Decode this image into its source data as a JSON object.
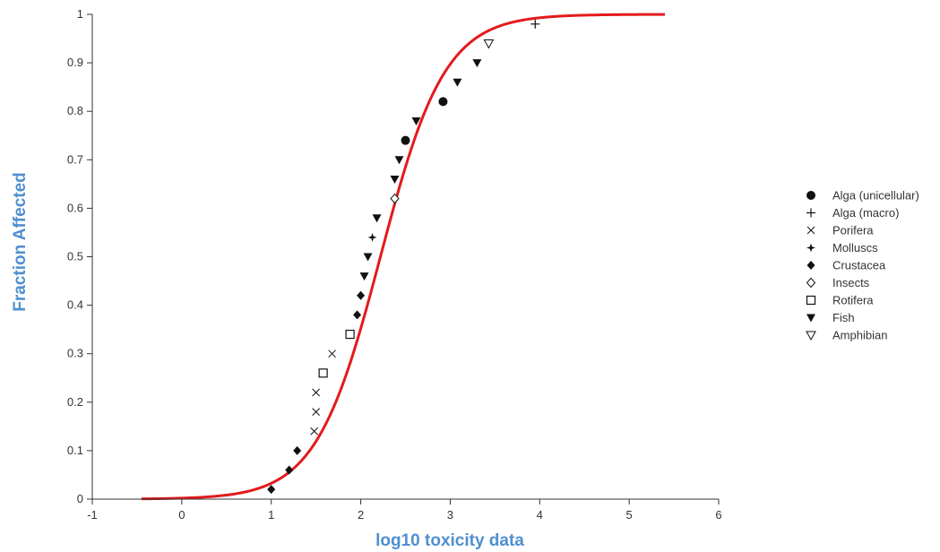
{
  "colors": {
    "axis_title": "#4f8fcf",
    "fit_line": "#e31a1c",
    "marker": "#111111",
    "axis": "#333333"
  },
  "chart_data": {
    "type": "scatter",
    "title": "",
    "xlabel": "log10 toxicity data",
    "ylabel": "Fraction Affected",
    "xlim": [
      -1,
      6
    ],
    "ylim": [
      0,
      1
    ],
    "xticks": [
      -1,
      0,
      1,
      2,
      3,
      4,
      5,
      6
    ],
    "yticks": [
      0,
      0.1,
      0.2,
      0.3,
      0.4,
      0.5,
      0.6,
      0.7,
      0.8,
      0.9,
      1
    ],
    "grid": false,
    "legend_position": "right",
    "fit_curve": {
      "type": "log-logistic",
      "x_range": [
        -0.45,
        5.4
      ],
      "midpoint": 2.22,
      "scale": 0.36
    },
    "series": [
      {
        "name": "Alga (unicellular)",
        "marker": "filled-circle",
        "points": [
          [
            2.5,
            0.74
          ],
          [
            2.92,
            0.82
          ]
        ]
      },
      {
        "name": "Alga (macro)",
        "marker": "plus",
        "points": [
          [
            3.95,
            0.98
          ]
        ]
      },
      {
        "name": "Porifera",
        "marker": "x",
        "points": [
          [
            1.48,
            0.14
          ],
          [
            1.5,
            0.18
          ],
          [
            1.5,
            0.22
          ],
          [
            1.68,
            0.3
          ]
        ]
      },
      {
        "name": "Molluscs",
        "marker": "small-star",
        "points": [
          [
            2.13,
            0.54
          ]
        ]
      },
      {
        "name": "Crustacea",
        "marker": "filled-diamond",
        "points": [
          [
            1.0,
            0.02
          ],
          [
            1.2,
            0.06
          ],
          [
            1.29,
            0.1
          ],
          [
            1.96,
            0.38
          ],
          [
            2.0,
            0.42
          ]
        ]
      },
      {
        "name": "Insects",
        "marker": "open-diamond",
        "points": [
          [
            2.38,
            0.62
          ]
        ]
      },
      {
        "name": "Rotifera",
        "marker": "open-square",
        "points": [
          [
            1.58,
            0.26
          ],
          [
            1.88,
            0.34
          ]
        ]
      },
      {
        "name": "Fish",
        "marker": "filled-triangle-down",
        "points": [
          [
            2.04,
            0.46
          ],
          [
            2.08,
            0.5
          ],
          [
            2.18,
            0.58
          ],
          [
            2.38,
            0.66
          ],
          [
            2.43,
            0.7
          ],
          [
            2.62,
            0.78
          ],
          [
            3.08,
            0.86
          ],
          [
            3.3,
            0.9
          ]
        ]
      },
      {
        "name": "Amphibian",
        "marker": "open-triangle-down",
        "points": [
          [
            3.43,
            0.94
          ]
        ]
      }
    ]
  }
}
